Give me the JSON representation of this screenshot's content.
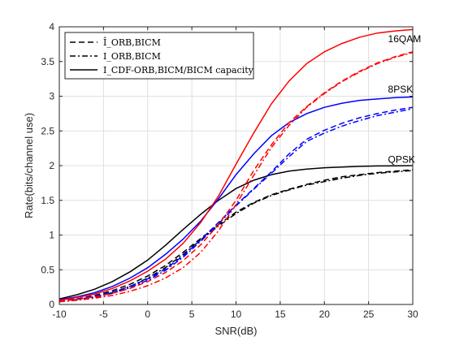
{
  "chart_data": {
    "type": "line",
    "xlabel": "SNR(dB)",
    "ylabel": "Rate(bits/channel use)",
    "xlim": [
      -10,
      30
    ],
    "ylim": [
      0,
      4
    ],
    "xticks": [
      -10,
      -5,
      0,
      5,
      10,
      15,
      20,
      25,
      30
    ],
    "yticks": [
      0,
      0.5,
      1,
      1.5,
      2,
      2.5,
      3,
      3.5,
      4
    ],
    "grid": true,
    "legend": {
      "placement": "top-left",
      "entries": [
        {
          "style": "dashed",
          "text": "Î_ORB,BICM"
        },
        {
          "style": "dashdot",
          "text": "I_ORB,BICM"
        },
        {
          "style": "solid",
          "text": "I_CDF-ORB,BICM/BICM capacity"
        }
      ]
    },
    "colors": {
      "QPSK": "#000000",
      "8PSK": "#0000ff",
      "16QAM": "#ff0000"
    },
    "x": [
      -10,
      -8,
      -6,
      -4,
      -2,
      0,
      2,
      4,
      6,
      8,
      10,
      12,
      14,
      16,
      18,
      20,
      22,
      24,
      26,
      28,
      30
    ],
    "series": [
      {
        "group": "QPSK",
        "style": "solid",
        "values": [
          0.08,
          0.14,
          0.22,
          0.33,
          0.47,
          0.64,
          0.85,
          1.08,
          1.3,
          1.5,
          1.67,
          1.79,
          1.87,
          1.92,
          1.95,
          1.97,
          1.98,
          1.99,
          1.995,
          1.998,
          2.0
        ]
      },
      {
        "group": "QPSK",
        "style": "dashed",
        "values": [
          0.05,
          0.08,
          0.13,
          0.2,
          0.29,
          0.41,
          0.56,
          0.75,
          0.95,
          1.15,
          1.33,
          1.47,
          1.58,
          1.66,
          1.73,
          1.79,
          1.84,
          1.87,
          1.9,
          1.92,
          1.94
        ]
      },
      {
        "group": "QPSK",
        "style": "dashdot",
        "values": [
          0.04,
          0.07,
          0.11,
          0.17,
          0.26,
          0.38,
          0.53,
          0.72,
          0.93,
          1.13,
          1.31,
          1.46,
          1.57,
          1.65,
          1.72,
          1.77,
          1.82,
          1.86,
          1.89,
          1.91,
          1.93
        ]
      },
      {
        "group": "8PSK",
        "style": "solid",
        "values": [
          0.07,
          0.11,
          0.17,
          0.26,
          0.38,
          0.53,
          0.72,
          0.94,
          1.2,
          1.52,
          1.87,
          2.17,
          2.43,
          2.62,
          2.75,
          2.84,
          2.9,
          2.94,
          2.96,
          2.98,
          2.99
        ]
      },
      {
        "group": "8PSK",
        "style": "dashed",
        "values": [
          0.05,
          0.08,
          0.12,
          0.18,
          0.26,
          0.37,
          0.51,
          0.7,
          0.93,
          1.18,
          1.43,
          1.67,
          1.91,
          2.17,
          2.38,
          2.51,
          2.61,
          2.69,
          2.75,
          2.8,
          2.84
        ]
      },
      {
        "group": "8PSK",
        "style": "dashdot",
        "values": [
          0.04,
          0.07,
          0.1,
          0.16,
          0.24,
          0.35,
          0.49,
          0.68,
          0.91,
          1.16,
          1.42,
          1.66,
          1.89,
          2.13,
          2.35,
          2.47,
          2.57,
          2.65,
          2.72,
          2.77,
          2.82
        ]
      },
      {
        "group": "16QAM",
        "style": "solid",
        "values": [
          0.06,
          0.1,
          0.15,
          0.23,
          0.34,
          0.48,
          0.65,
          0.88,
          1.18,
          1.56,
          2.02,
          2.47,
          2.89,
          3.22,
          3.47,
          3.64,
          3.76,
          3.85,
          3.91,
          3.94,
          3.96
        ]
      },
      {
        "group": "16QAM",
        "style": "dashed",
        "values": [
          0.05,
          0.07,
          0.11,
          0.16,
          0.23,
          0.33,
          0.46,
          0.63,
          0.86,
          1.15,
          1.5,
          1.93,
          2.3,
          2.62,
          2.85,
          3.05,
          3.22,
          3.36,
          3.48,
          3.57,
          3.64
        ]
      },
      {
        "group": "16QAM",
        "style": "dashdot",
        "values": [
          0.04,
          0.06,
          0.09,
          0.13,
          0.19,
          0.27,
          0.38,
          0.53,
          0.75,
          1.06,
          1.44,
          1.86,
          2.26,
          2.58,
          2.84,
          3.04,
          3.21,
          3.35,
          3.47,
          3.56,
          3.63
        ]
      }
    ],
    "annotations": [
      {
        "text": "16QAM",
        "x": 27.2,
        "y": 3.78
      },
      {
        "text": "8PSK",
        "x": 27.2,
        "y": 3.05
      },
      {
        "text": "QPSK",
        "x": 27.2,
        "y": 2.04
      }
    ]
  }
}
